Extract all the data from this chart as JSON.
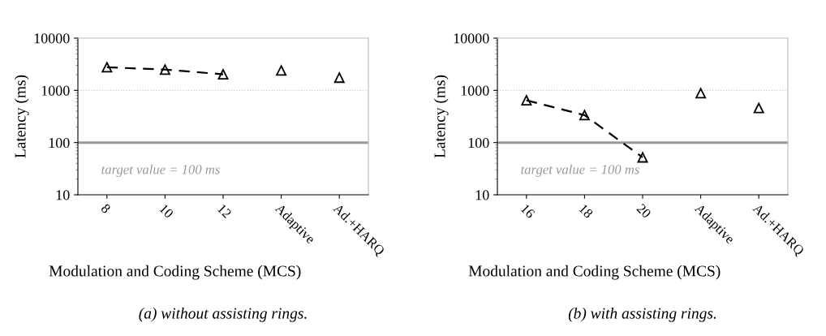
{
  "chart_data": [
    {
      "type": "line",
      "xlabel": "Modulation and Coding Scheme (MCS)",
      "ylabel": "Latency (ms)",
      "categories": [
        "8",
        "10",
        "12",
        "Adaptive",
        "Ad.+HARQ"
      ],
      "series": [
        {
          "color": "#000000",
          "values": [
            2770,
            2500,
            2030,
            null,
            null
          ],
          "line_style": "dashed",
          "marker": "triangle"
        },
        {
          "type": "scatter",
          "color": "#000000",
          "values": [
            null,
            null,
            null,
            2400,
            1750
          ],
          "marker": "triangle"
        }
      ],
      "log": "y",
      "ylim": [
        10,
        10000
      ],
      "yticks": [
        10,
        100,
        1000,
        10000
      ],
      "ref_lines": [
        {
          "axis": "y",
          "value": 100,
          "label": "target value = 100 ms",
          "color": "#999999"
        },
        {
          "axis": "y",
          "value": 1000,
          "color": "#cccccc",
          "line_style": "dotted"
        }
      ],
      "annotations": [
        "(a) without assisting rings."
      ]
    },
    {
      "type": "line",
      "xlabel": "Modulation and Coding Scheme (MCS)",
      "ylabel": "Latency (ms)",
      "categories": [
        "16",
        "18",
        "20",
        "Adaptive",
        "Ad.+HARQ"
      ],
      "series": [
        {
          "color": "#000000",
          "values": [
            645,
            335,
            52,
            null,
            null
          ],
          "line_style": "dashed",
          "marker": "triangle"
        },
        {
          "type": "scatter",
          "color": "#000000",
          "values": [
            null,
            null,
            null,
            880,
            460
          ],
          "marker": "triangle"
        }
      ],
      "log": "y",
      "ylim": [
        10,
        10000
      ],
      "yticks": [
        10,
        100,
        1000,
        10000
      ],
      "ref_lines": [
        {
          "axis": "y",
          "value": 100,
          "label": "target value = 100 ms",
          "color": "#999999"
        },
        {
          "axis": "y",
          "value": 1000,
          "color": "#cccccc",
          "line_style": "dotted"
        }
      ],
      "annotations": [
        "(b) with assisting rings."
      ]
    }
  ]
}
